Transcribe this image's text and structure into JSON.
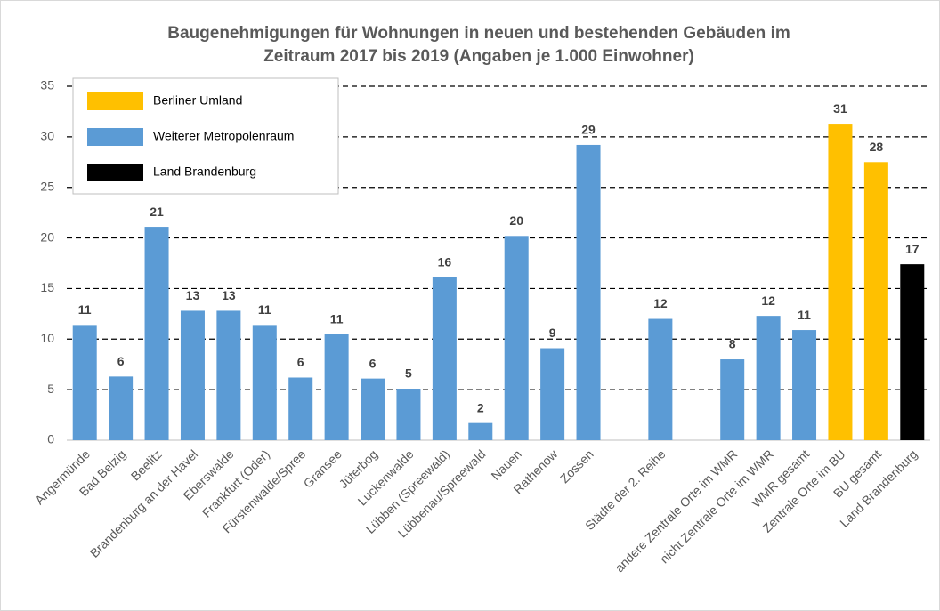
{
  "chart_data": {
    "type": "bar",
    "title": [
      "Baugenehmigungen für Wohnungen in neuen und bestehenden Gebäuden im",
      "Zeitraum 2017 bis 2019 (Angaben je 1.000 Einwohner)"
    ],
    "categories": [
      "Angermünde",
      "Bad Belzig",
      "Beelitz",
      "Brandenburg an der Havel",
      "Eberswalde",
      "Frankfurt (Oder)",
      "Fürstenwalde/Spree",
      "Gransee",
      "Jüterbog",
      "Luckenwalde",
      "Lübben (Spreewald)",
      "Lübbenau/Spreewald",
      "Nauen",
      "Rathenow",
      "Zossen",
      null,
      "Städte der 2. Reihe",
      null,
      "andere Zentrale Orte im WMR",
      "nicht Zentrale Orte im WMR",
      "WMR gesamt",
      "Zentrale Orte im BU",
      "BU gesamt",
      "Land Brandenburg"
    ],
    "series": [
      {
        "name": "Berliner Umland",
        "color": "#ffc000",
        "values": [
          null,
          null,
          null,
          null,
          null,
          null,
          null,
          null,
          null,
          null,
          null,
          null,
          null,
          null,
          null,
          null,
          null,
          null,
          null,
          null,
          null,
          31.3,
          27.5,
          null
        ],
        "value_labels": [
          null,
          null,
          null,
          null,
          null,
          null,
          null,
          null,
          null,
          null,
          null,
          null,
          null,
          null,
          null,
          null,
          null,
          null,
          null,
          null,
          null,
          "31",
          "28",
          null
        ]
      },
      {
        "name": "Weiterer Metropolenraum",
        "color": "#5b9bd5",
        "values": [
          11.4,
          6.3,
          21.1,
          12.8,
          12.8,
          11.4,
          6.2,
          10.5,
          6.1,
          5.1,
          16.1,
          1.7,
          20.2,
          9.1,
          29.2,
          null,
          12.0,
          null,
          8.0,
          12.3,
          10.9,
          null,
          null,
          null
        ],
        "value_labels": [
          "11",
          "6",
          "21",
          "13",
          "13",
          "11",
          "6",
          "11",
          "6",
          "5",
          "16",
          "2",
          "20",
          "9",
          "29",
          null,
          "12",
          null,
          "8",
          "12",
          "11",
          null,
          null,
          null
        ]
      },
      {
        "name": "Land Brandenburg",
        "color": "#000000",
        "values": [
          null,
          null,
          null,
          null,
          null,
          null,
          null,
          null,
          null,
          null,
          null,
          null,
          null,
          null,
          null,
          null,
          null,
          null,
          null,
          null,
          null,
          null,
          null,
          17.4
        ],
        "value_labels": [
          null,
          null,
          null,
          null,
          null,
          null,
          null,
          null,
          null,
          null,
          null,
          null,
          null,
          null,
          null,
          null,
          null,
          null,
          null,
          null,
          null,
          null,
          null,
          "17"
        ]
      }
    ],
    "ylim": [
      0,
      35
    ],
    "yticks": [
      0,
      5,
      10,
      15,
      20,
      25,
      30,
      35
    ],
    "grid": true,
    "legend": "upper left"
  }
}
